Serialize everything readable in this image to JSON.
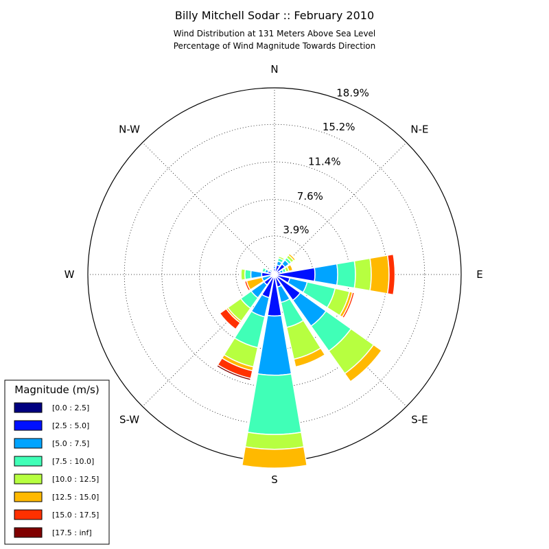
{
  "chart_data": {
    "type": "windrose",
    "title": "Billy Mitchell Sodar :: February 2010",
    "subtitle_lines": [
      "Wind Distribution at 131 Meters Above Sea Level",
      "Percentage of Wind Magnitude Towards Direction"
    ],
    "direction_labels": [
      {
        "label": "N",
        "angle": 0
      },
      {
        "label": "N-E",
        "angle": 45
      },
      {
        "label": "E",
        "angle": 90
      },
      {
        "label": "S-E",
        "angle": 135
      },
      {
        "label": "S",
        "angle": 180
      },
      {
        "label": "S-W",
        "angle": 225
      },
      {
        "label": "W",
        "angle": 270
      },
      {
        "label": "N-W",
        "angle": 315
      }
    ],
    "radial_ticks": [
      3.9,
      7.6,
      11.4,
      15.2,
      18.9
    ],
    "radial_tick_labels": [
      "3.9%",
      "7.6%",
      "11.4%",
      "15.2%",
      "18.9%"
    ],
    "radial_max": 18.9,
    "legend_title": "Magnitude (m/s)",
    "bins": [
      {
        "label": "[0.0 : 2.5]",
        "color": "#000080"
      },
      {
        "label": "[2.5 : 5.0]",
        "color": "#0010ff"
      },
      {
        "label": "[5.0 : 7.5]",
        "color": "#00a4ff"
      },
      {
        "label": "[7.5 : 10.0]",
        "color": "#40ffb7"
      },
      {
        "label": "[10.0 : 12.5]",
        "color": "#b7ff40"
      },
      {
        "label": "[12.5 : 15.0]",
        "color": "#ffb900"
      },
      {
        "label": "[15.0 : 17.5]",
        "color": "#ff3000"
      },
      {
        "label": "[17.5 : inf]",
        "color": "#800000"
      }
    ],
    "sector_width_deg": 22.5,
    "sectors": [
      {
        "direction": 0,
        "values": [
          0.1,
          0.5,
          0.2,
          0.0,
          0.0,
          0.0,
          0.0,
          0.0
        ]
      },
      {
        "direction": 22.5,
        "values": [
          0.1,
          0.9,
          0.4,
          0.3,
          0.2,
          0.1,
          0.0,
          0.0
        ]
      },
      {
        "direction": 45,
        "values": [
          0.1,
          1.2,
          0.5,
          0.3,
          0.3,
          0.2,
          0.0,
          0.0
        ]
      },
      {
        "direction": 67.5,
        "values": [
          0.1,
          0.5,
          0.3,
          0.3,
          0.3,
          0.4,
          0.0,
          0.0
        ]
      },
      {
        "direction": 90,
        "values": [
          0.1,
          4.0,
          2.3,
          1.8,
          1.6,
          1.8,
          0.6,
          0.0
        ]
      },
      {
        "direction": 112.5,
        "values": [
          0.1,
          1.5,
          1.8,
          2.9,
          1.5,
          0.3,
          0.2,
          0.0
        ]
      },
      {
        "direction": 135,
        "values": [
          0.2,
          3.0,
          3.2,
          3.1,
          2.8,
          1.0,
          0.0,
          0.0
        ]
      },
      {
        "direction": 157.5,
        "values": [
          0.1,
          1.2,
          1.6,
          2.6,
          3.3,
          0.8,
          0.1,
          0.0
        ]
      },
      {
        "direction": 180,
        "values": [
          0.1,
          4.1,
          6.0,
          6.0,
          1.5,
          1.9,
          0.0,
          0.0
        ]
      },
      {
        "direction": 202.5,
        "values": [
          0.2,
          2.2,
          2.0,
          3.2,
          2.0,
          0.4,
          0.8,
          0.2
        ]
      },
      {
        "direction": 225,
        "values": [
          0.1,
          1.2,
          1.6,
          1.3,
          1.6,
          0.2,
          0.8,
          0.0
        ]
      },
      {
        "direction": 247.5,
        "values": [
          0.1,
          0.3,
          0.9,
          0.0,
          0.0,
          1.6,
          0.2,
          0.0
        ]
      },
      {
        "direction": 270,
        "values": [
          0.1,
          1.2,
          1.1,
          0.6,
          0.4,
          0.1,
          0.0,
          0.0
        ]
      },
      {
        "direction": 292.5,
        "values": [
          0.1,
          0.6,
          0.3,
          0.3,
          0.0,
          0.0,
          0.0,
          0.0
        ]
      },
      {
        "direction": 315,
        "values": [
          0.1,
          0.3,
          0.2,
          0.0,
          0.0,
          0.0,
          0.0,
          0.0
        ]
      },
      {
        "direction": 337.5,
        "values": [
          0.1,
          0.3,
          0.1,
          0.0,
          0.0,
          0.0,
          0.0,
          0.0
        ]
      }
    ]
  }
}
